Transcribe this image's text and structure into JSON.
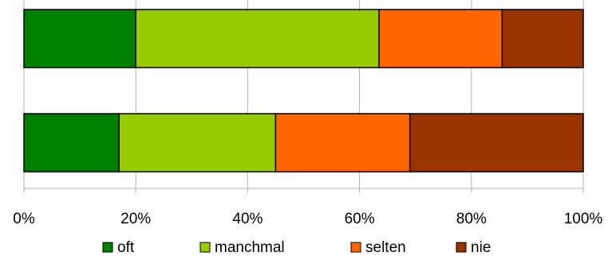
{
  "chart_data": {
    "type": "bar",
    "orientation": "horizontal",
    "stacked": "percent",
    "title": "",
    "xlabel": "",
    "ylabel": "",
    "xlim": [
      0,
      100
    ],
    "x_ticks": [
      "0%",
      "20%",
      "40%",
      "60%",
      "80%",
      "100%"
    ],
    "categories": [
      "",
      ""
    ],
    "series": [
      {
        "name": "oft",
        "color": "#008000",
        "values": [
          20,
          17
        ]
      },
      {
        "name": "manchmal",
        "color": "#99cc00",
        "values": [
          43.5,
          28
        ]
      },
      {
        "name": "selten",
        "color": "#ff6600",
        "values": [
          22,
          24
        ]
      },
      {
        "name": "nie",
        "color": "#993300",
        "values": [
          14.5,
          31
        ]
      }
    ],
    "grid": "vertical",
    "legend": "bottom"
  }
}
